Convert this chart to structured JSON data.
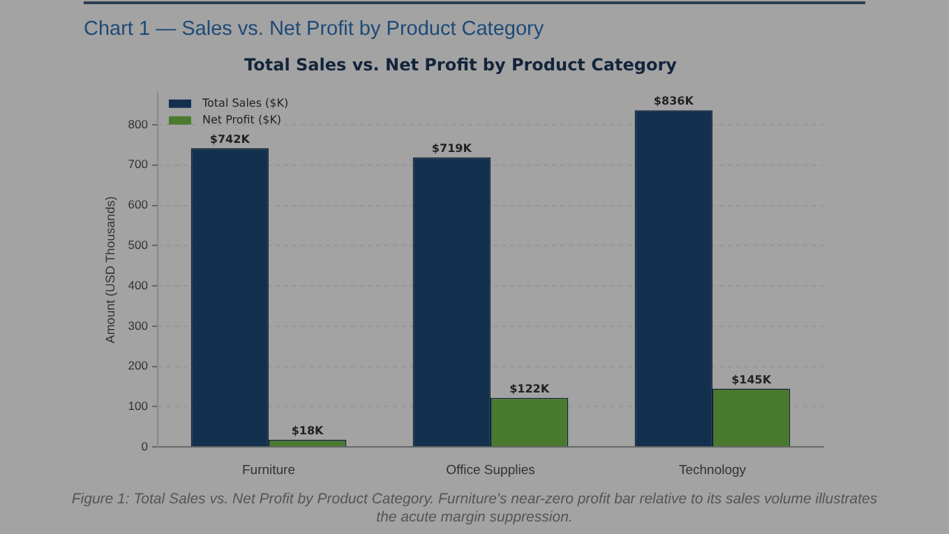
{
  "chart_data": {
    "type": "bar",
    "title": "Total Sales vs. Net Profit by Product Category",
    "ylabel": "Amount (USD Thousands)",
    "categories": [
      "Furniture",
      "Office Supplies",
      "Technology"
    ],
    "series": [
      {
        "name": "Total Sales ($K)",
        "color": "#14304f",
        "values": [
          742,
          719,
          836
        ],
        "value_labels": [
          "$742K",
          "$719K",
          "$836K"
        ]
      },
      {
        "name": "Net Profit ($K)",
        "color": "#4a7a2e",
        "values": [
          18,
          122,
          145
        ],
        "value_labels": [
          "$18K",
          "$122K",
          "$145K"
        ]
      }
    ],
    "ylim": [
      0,
      880
    ],
    "yticks": [
      0,
      100,
      200,
      300,
      400,
      500,
      600,
      700,
      800
    ],
    "grid": "y",
    "legend": "top left",
    "annotations": [
      "Chart 1 — Sales vs. Net Profit by Product Category",
      "Figure 1: Total Sales vs. Net Profit by Product Category. Furniture's near-zero profit bar relative to its sales volume illustrates the acute margin suppression."
    ]
  }
}
